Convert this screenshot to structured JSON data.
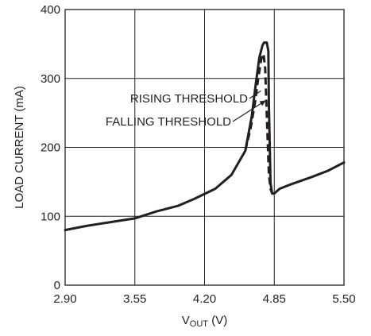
{
  "chart_data": {
    "type": "line",
    "title": "",
    "xlabel_main": "V",
    "xlabel_sub": "OUT",
    "xlabel_unit": " (V)",
    "ylabel": "LOAD CURRENT (mA)",
    "xlim": [
      2.9,
      5.5
    ],
    "ylim": [
      0,
      400
    ],
    "x_ticks": [
      2.9,
      3.55,
      4.2,
      4.85,
      5.5
    ],
    "x_tick_labels": [
      "2.90",
      "3.55",
      "4.20",
      "4.85",
      "5.50"
    ],
    "y_ticks": [
      0,
      100,
      200,
      300,
      400
    ],
    "y_tick_labels": [
      "0",
      "100",
      "200",
      "300",
      "400"
    ],
    "grid": true,
    "series": [
      {
        "name": "RISING THRESHOLD",
        "style": "solid",
        "color": "#231f20",
        "x": [
          2.9,
          3.1,
          3.3,
          3.55,
          3.75,
          3.95,
          4.1,
          4.3,
          4.45,
          4.58,
          4.64,
          4.68,
          4.71,
          4.74,
          4.755,
          4.78,
          4.795,
          4.8,
          4.81,
          4.815,
          4.83,
          4.85,
          4.9,
          5.0,
          5.2,
          5.35,
          5.5
        ],
        "y": [
          80,
          86,
          91,
          97,
          107,
          115,
          125,
          140,
          160,
          195,
          245,
          295,
          330,
          348,
          352,
          352,
          340,
          260,
          190,
          148,
          133,
          133,
          140,
          146,
          157,
          166,
          178
        ]
      },
      {
        "name": "FALLING THRESHOLD",
        "style": "dashed",
        "color": "#231f20",
        "x": [
          4.58,
          4.63,
          4.67,
          4.7,
          4.725,
          4.74,
          4.75,
          4.765,
          4.775,
          4.79,
          4.8,
          4.815,
          4.83
        ],
        "y": [
          195,
          228,
          265,
          300,
          325,
          335,
          335,
          315,
          270,
          205,
          160,
          140,
          133
        ]
      }
    ],
    "annotations": [
      {
        "text": "RISING THRESHOLD",
        "target_x": 4.725,
        "target_y": 282
      },
      {
        "text": "FALLING THRESHOLD",
        "target_x": 4.77,
        "target_y": 268
      }
    ]
  }
}
